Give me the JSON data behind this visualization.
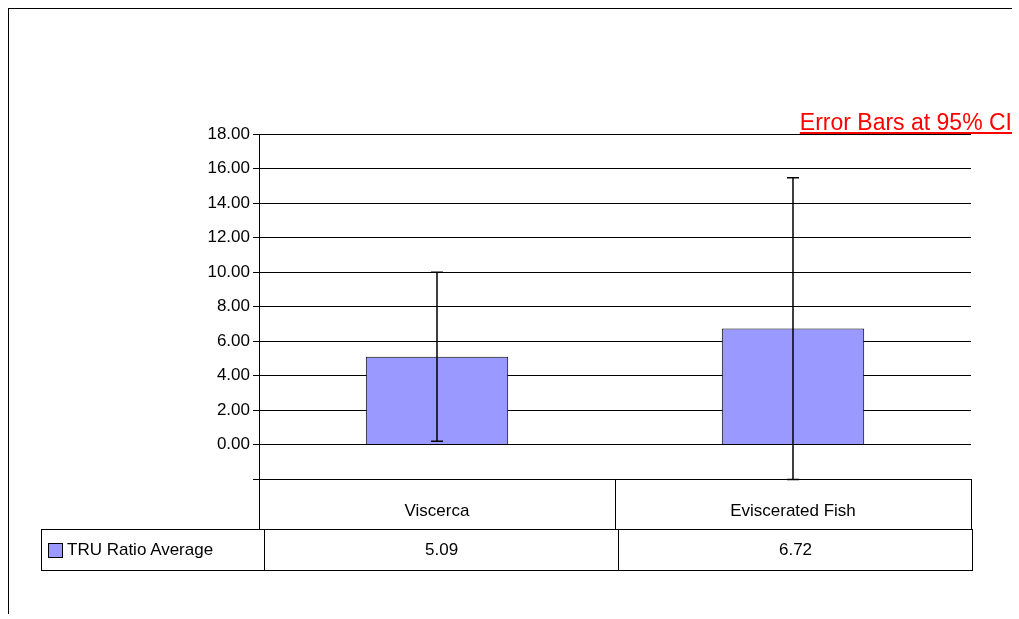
{
  "chart_data": {
    "type": "bar",
    "categories": [
      "Viscerca",
      "Eviscerated Fish"
    ],
    "series": [
      {
        "name": "TRU Ratio Average",
        "color": "#9999ff",
        "values": [
          5.09,
          6.72
        ],
        "errors": [
          4.9,
          8.75
        ]
      }
    ],
    "ylim": [
      -2,
      18
    ],
    "yticks": [
      {
        "value": -2,
        "label": null
      },
      {
        "value": 0,
        "label": "0.00"
      },
      {
        "value": 2,
        "label": "2.00"
      },
      {
        "value": 4,
        "label": "4.00"
      },
      {
        "value": 6,
        "label": "6.00"
      },
      {
        "value": 8,
        "label": "8.00"
      },
      {
        "value": 10,
        "label": "10.00"
      },
      {
        "value": 12,
        "label": "12.00"
      },
      {
        "value": 14,
        "label": "14.00"
      },
      {
        "value": 16,
        "label": "16.00"
      },
      {
        "value": 18,
        "label": "18.00"
      }
    ],
    "grid": "y",
    "legend": "bottom left",
    "data_labels": true,
    "annotations": [
      "Error Bars at 95% CI"
    ]
  }
}
